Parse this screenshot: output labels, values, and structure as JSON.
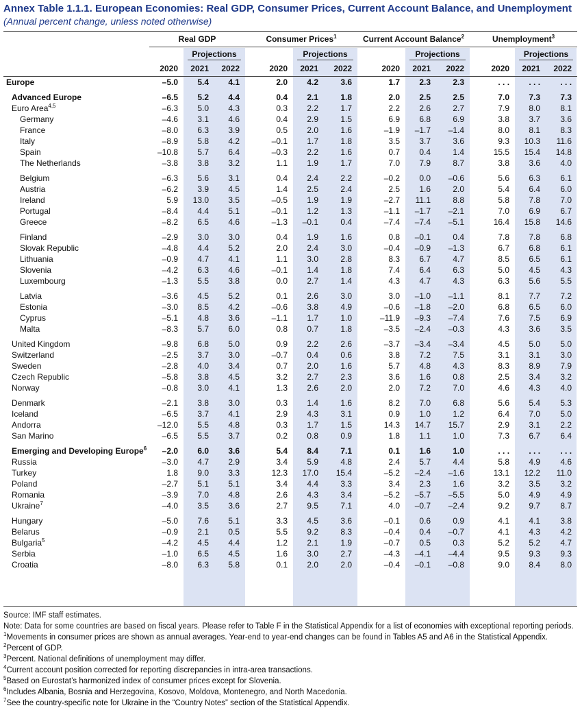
{
  "title": "Annex Table 1.1.1. European Economies: Real GDP, Consumer Prices, Current Account Balance, and Unemployment",
  "subtitle": "(Annual percent change, unless noted otherwise)",
  "groups": [
    {
      "label": "Real GDP",
      "sup": ""
    },
    {
      "label": "Consumer Prices",
      "sup": "1"
    },
    {
      "label": "Current Account Balance",
      "sup": "2"
    },
    {
      "label": "Unemployment",
      "sup": "3"
    }
  ],
  "projections_label": "Projections",
  "years": [
    "2020",
    "2021",
    "2022"
  ],
  "rows": [
    {
      "name": "Europe",
      "level": 0,
      "bold": true,
      "v": [
        "–5.0",
        "5.4",
        "4.1",
        "2.0",
        "4.2",
        "3.6",
        "1.7",
        "2.3",
        "2.3",
        ". . .",
        ". . .",
        ". . ."
      ]
    },
    {
      "gap": true
    },
    {
      "name": "Advanced Europe",
      "level": 1,
      "bold": true,
      "v": [
        "–6.5",
        "5.2",
        "4.4",
        "0.4",
        "2.1",
        "1.8",
        "2.0",
        "2.5",
        "2.5",
        "7.0",
        "7.3",
        "7.3"
      ]
    },
    {
      "name": "Euro Area",
      "sup": "4,5",
      "level": 1,
      "v": [
        "–6.3",
        "5.0",
        "4.3",
        "0.3",
        "2.2",
        "1.7",
        "2.2",
        "2.6",
        "2.7",
        "7.9",
        "8.0",
        "8.1"
      ]
    },
    {
      "name": "Germany",
      "level": 2,
      "v": [
        "–4.6",
        "3.1",
        "4.6",
        "0.4",
        "2.9",
        "1.5",
        "6.9",
        "6.8",
        "6.9",
        "3.8",
        "3.7",
        "3.6"
      ]
    },
    {
      "name": "France",
      "level": 2,
      "v": [
        "–8.0",
        "6.3",
        "3.9",
        "0.5",
        "2.0",
        "1.6",
        "–1.9",
        "–1.7",
        "–1.4",
        "8.0",
        "8.1",
        "8.3"
      ]
    },
    {
      "name": "Italy",
      "level": 2,
      "v": [
        "–8.9",
        "5.8",
        "4.2",
        "–0.1",
        "1.7",
        "1.8",
        "3.5",
        "3.7",
        "3.6",
        "9.3",
        "10.3",
        "11.6"
      ]
    },
    {
      "name": "Spain",
      "level": 2,
      "v": [
        "–10.8",
        "5.7",
        "6.4",
        "–0.3",
        "2.2",
        "1.6",
        "0.7",
        "0.4",
        "1.4",
        "15.5",
        "15.4",
        "14.8"
      ]
    },
    {
      "name": "The Netherlands",
      "level": 2,
      "v": [
        "–3.8",
        "3.8",
        "3.2",
        "1.1",
        "1.9",
        "1.7",
        "7.0",
        "7.9",
        "8.7",
        "3.8",
        "3.6",
        "4.0"
      ]
    },
    {
      "gap": true
    },
    {
      "name": "Belgium",
      "level": 2,
      "v": [
        "–6.3",
        "5.6",
        "3.1",
        "0.4",
        "2.4",
        "2.2",
        "–0.2",
        "0.0",
        "–0.6",
        "5.6",
        "6.3",
        "6.1"
      ]
    },
    {
      "name": "Austria",
      "level": 2,
      "v": [
        "–6.2",
        "3.9",
        "4.5",
        "1.4",
        "2.5",
        "2.4",
        "2.5",
        "1.6",
        "2.0",
        "5.4",
        "6.4",
        "6.0"
      ]
    },
    {
      "name": "Ireland",
      "level": 2,
      "v": [
        "5.9",
        "13.0",
        "3.5",
        "–0.5",
        "1.9",
        "1.9",
        "–2.7",
        "11.1",
        "8.8",
        "5.8",
        "7.8",
        "7.0"
      ]
    },
    {
      "name": "Portugal",
      "level": 2,
      "v": [
        "–8.4",
        "4.4",
        "5.1",
        "–0.1",
        "1.2",
        "1.3",
        "–1.1",
        "–1.7",
        "–2.1",
        "7.0",
        "6.9",
        "6.7"
      ]
    },
    {
      "name": "Greece",
      "level": 2,
      "v": [
        "–8.2",
        "6.5",
        "4.6",
        "–1.3",
        "–0.1",
        "0.4",
        "–7.4",
        "–7.4",
        "–5.1",
        "16.4",
        "15.8",
        "14.6"
      ]
    },
    {
      "gap": true
    },
    {
      "name": "Finland",
      "level": 2,
      "v": [
        "–2.9",
        "3.0",
        "3.0",
        "0.4",
        "1.9",
        "1.6",
        "0.8",
        "–0.1",
        "0.4",
        "7.8",
        "7.8",
        "6.8"
      ]
    },
    {
      "name": "Slovak Republic",
      "level": 2,
      "v": [
        "–4.8",
        "4.4",
        "5.2",
        "2.0",
        "2.4",
        "3.0",
        "–0.4",
        "–0.9",
        "–1.3",
        "6.7",
        "6.8",
        "6.1"
      ]
    },
    {
      "name": "Lithuania",
      "level": 2,
      "v": [
        "–0.9",
        "4.7",
        "4.1",
        "1.1",
        "3.0",
        "2.8",
        "8.3",
        "6.7",
        "4.7",
        "8.5",
        "6.5",
        "6.1"
      ]
    },
    {
      "name": "Slovenia",
      "level": 2,
      "v": [
        "–4.2",
        "6.3",
        "4.6",
        "–0.1",
        "1.4",
        "1.8",
        "7.4",
        "6.4",
        "6.3",
        "5.0",
        "4.5",
        "4.3"
      ]
    },
    {
      "name": "Luxembourg",
      "level": 2,
      "v": [
        "–1.3",
        "5.5",
        "3.8",
        "0.0",
        "2.7",
        "1.4",
        "4.3",
        "4.7",
        "4.3",
        "6.3",
        "5.6",
        "5.5"
      ]
    },
    {
      "gap": true
    },
    {
      "name": "Latvia",
      "level": 2,
      "v": [
        "–3.6",
        "4.5",
        "5.2",
        "0.1",
        "2.6",
        "3.0",
        "3.0",
        "–1.0",
        "–1.1",
        "8.1",
        "7.7",
        "7.2"
      ]
    },
    {
      "name": "Estonia",
      "level": 2,
      "v": [
        "–3.0",
        "8.5",
        "4.2",
        "–0.6",
        "3.8",
        "4.9",
        "–0.6",
        "–1.8",
        "–2.0",
        "6.8",
        "6.5",
        "6.0"
      ]
    },
    {
      "name": "Cyprus",
      "level": 2,
      "v": [
        "–5.1",
        "4.8",
        "3.6",
        "–1.1",
        "1.7",
        "1.0",
        "–11.9",
        "–9.3",
        "–7.4",
        "7.6",
        "7.5",
        "6.9"
      ]
    },
    {
      "name": "Malta",
      "level": 2,
      "v": [
        "–8.3",
        "5.7",
        "6.0",
        "0.8",
        "0.7",
        "1.8",
        "–3.5",
        "–2.4",
        "–0.3",
        "4.3",
        "3.6",
        "3.5"
      ]
    },
    {
      "gap": true
    },
    {
      "name": "United Kingdom",
      "level": 1,
      "v": [
        "–9.8",
        "6.8",
        "5.0",
        "0.9",
        "2.2",
        "2.6",
        "–3.7",
        "–3.4",
        "–3.4",
        "4.5",
        "5.0",
        "5.0"
      ]
    },
    {
      "name": "Switzerland",
      "level": 1,
      "v": [
        "–2.5",
        "3.7",
        "3.0",
        "–0.7",
        "0.4",
        "0.6",
        "3.8",
        "7.2",
        "7.5",
        "3.1",
        "3.1",
        "3.0"
      ]
    },
    {
      "name": "Sweden",
      "level": 1,
      "v": [
        "–2.8",
        "4.0",
        "3.4",
        "0.7",
        "2.0",
        "1.6",
        "5.7",
        "4.8",
        "4.3",
        "8.3",
        "8.9",
        "7.9"
      ]
    },
    {
      "name": "Czech Republic",
      "level": 1,
      "v": [
        "–5.8",
        "3.8",
        "4.5",
        "3.2",
        "2.7",
        "2.3",
        "3.6",
        "1.6",
        "0.8",
        "2.5",
        "3.4",
        "3.2"
      ]
    },
    {
      "name": "Norway",
      "level": 1,
      "v": [
        "–0.8",
        "3.0",
        "4.1",
        "1.3",
        "2.6",
        "2.0",
        "2.0",
        "7.2",
        "7.0",
        "4.6",
        "4.3",
        "4.0"
      ]
    },
    {
      "gap": true
    },
    {
      "name": "Denmark",
      "level": 1,
      "v": [
        "–2.1",
        "3.8",
        "3.0",
        "0.3",
        "1.4",
        "1.6",
        "8.2",
        "7.0",
        "6.8",
        "5.6",
        "5.4",
        "5.3"
      ]
    },
    {
      "name": "Iceland",
      "level": 1,
      "v": [
        "–6.5",
        "3.7",
        "4.1",
        "2.9",
        "4.3",
        "3.1",
        "0.9",
        "1.0",
        "1.2",
        "6.4",
        "7.0",
        "5.0"
      ]
    },
    {
      "name": "Andorra",
      "level": 1,
      "v": [
        "–12.0",
        "5.5",
        "4.8",
        "0.3",
        "1.7",
        "1.5",
        "14.3",
        "14.7",
        "15.7",
        "2.9",
        "3.1",
        "2.2"
      ]
    },
    {
      "name": "San Marino",
      "level": 1,
      "v": [
        "–6.5",
        "5.5",
        "3.7",
        "0.2",
        "0.8",
        "0.9",
        "1.8",
        "1.1",
        "1.0",
        "7.3",
        "6.7",
        "6.4"
      ]
    },
    {
      "gap": true
    },
    {
      "name": "Emerging and Developing Europe",
      "sup": "6",
      "level": 1,
      "bold": true,
      "v": [
        "–2.0",
        "6.0",
        "3.6",
        "5.4",
        "8.4",
        "7.1",
        "0.1",
        "1.6",
        "1.0",
        ". . .",
        ". . .",
        ". . ."
      ]
    },
    {
      "name": "Russia",
      "level": 1,
      "v": [
        "–3.0",
        "4.7",
        "2.9",
        "3.4",
        "5.9",
        "4.8",
        "2.4",
        "5.7",
        "4.4",
        "5.8",
        "4.9",
        "4.6"
      ]
    },
    {
      "name": "Turkey",
      "level": 1,
      "v": [
        "1.8",
        "9.0",
        "3.3",
        "12.3",
        "17.0",
        "15.4",
        "–5.2",
        "–2.4",
        "–1.6",
        "13.1",
        "12.2",
        "11.0"
      ]
    },
    {
      "name": "Poland",
      "level": 1,
      "v": [
        "–2.7",
        "5.1",
        "5.1",
        "3.4",
        "4.4",
        "3.3",
        "3.4",
        "2.3",
        "1.6",
        "3.2",
        "3.5",
        "3.2"
      ]
    },
    {
      "name": "Romania",
      "level": 1,
      "v": [
        "–3.9",
        "7.0",
        "4.8",
        "2.6",
        "4.3",
        "3.4",
        "–5.2",
        "–5.7",
        "–5.5",
        "5.0",
        "4.9",
        "4.9"
      ]
    },
    {
      "name": "Ukraine",
      "sup": "7",
      "level": 1,
      "v": [
        "–4.0",
        "3.5",
        "3.6",
        "2.7",
        "9.5",
        "7.1",
        "4.0",
        "–0.7",
        "–2.4",
        "9.2",
        "9.7",
        "8.7"
      ]
    },
    {
      "gap": true
    },
    {
      "name": "Hungary",
      "level": 1,
      "v": [
        "–5.0",
        "7.6",
        "5.1",
        "3.3",
        "4.5",
        "3.6",
        "–0.1",
        "0.6",
        "0.9",
        "4.1",
        "4.1",
        "3.8"
      ]
    },
    {
      "name": "Belarus",
      "level": 1,
      "v": [
        "–0.9",
        "2.1",
        "0.5",
        "5.5",
        "9.2",
        "8.3",
        "–0.4",
        "0.4",
        "–0.7",
        "4.1",
        "4.3",
        "4.2"
      ]
    },
    {
      "name": "Bulgaria",
      "sup": "5",
      "level": 1,
      "v": [
        "–4.2",
        "4.5",
        "4.4",
        "1.2",
        "2.1",
        "1.9",
        "–0.7",
        "0.5",
        "0.3",
        "5.2",
        "5.2",
        "4.7"
      ]
    },
    {
      "name": "Serbia",
      "level": 1,
      "v": [
        "–1.0",
        "6.5",
        "4.5",
        "1.6",
        "3.0",
        "2.7",
        "–4.3",
        "–4.1",
        "–4.4",
        "9.5",
        "9.3",
        "9.3"
      ]
    },
    {
      "name": "Croatia",
      "level": 1,
      "v": [
        "–8.0",
        "6.3",
        "5.8",
        "0.1",
        "2.0",
        "2.0",
        "–0.4",
        "–0.1",
        "–0.8",
        "9.0",
        "8.4",
        "8.0"
      ]
    }
  ],
  "notes": [
    {
      "sup": "",
      "text": "Source: IMF staff estimates."
    },
    {
      "sup": "",
      "text": "Note: Data for some countries are based on fiscal years. Please refer to Table F in the Statistical Appendix for a list of economies with exceptional reporting periods."
    },
    {
      "sup": "1",
      "text": "Movements in consumer prices are shown as annual averages. Year-end to year-end changes can be found in Tables A5 and A6 in the Statistical Appendix."
    },
    {
      "sup": "2",
      "text": "Percent of GDP."
    },
    {
      "sup": "3",
      "text": "Percent. National definitions of unemployment may differ."
    },
    {
      "sup": "4",
      "text": "Current account position corrected for reporting discrepancies in intra-area transactions."
    },
    {
      "sup": "5",
      "text": "Based on Eurostat’s harmonized index of consumer prices except for Slovenia."
    },
    {
      "sup": "6",
      "text": "Includes Albania, Bosnia and Herzegovina, Kosovo, Moldova, Montenegro, and North Macedonia."
    },
    {
      "sup": "7",
      "text": "See the country-specific note for Ukraine in the “Country Notes” section of the Statistical Appendix."
    }
  ]
}
